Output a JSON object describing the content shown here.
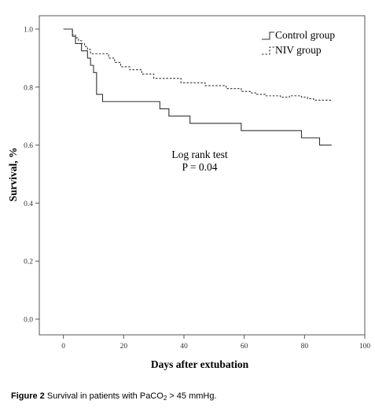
{
  "chart_data": {
    "type": "line",
    "step": true,
    "xlabel": "Days after extubation",
    "ylabel": "Survival, %",
    "xlim": [
      -8,
      100
    ],
    "ylim": [
      0,
      1
    ],
    "xticks": [
      0,
      20,
      40,
      60,
      80,
      100
    ],
    "yticks": [
      "0.0",
      "0.2",
      "0.4",
      "0.6",
      "0.8",
      "1.0"
    ],
    "grid": false,
    "legend_position": "top-right",
    "annotation": [
      "Log rank test",
      "P = 0.04"
    ],
    "series": [
      {
        "name": "Control group",
        "line_style": "solid",
        "color": "#333333",
        "x": [
          0,
          2,
          3,
          4,
          6,
          7,
          8,
          9,
          10,
          11,
          13,
          32,
          35,
          42,
          59,
          79,
          85,
          89
        ],
        "y": [
          1.0,
          1.0,
          0.975,
          0.95,
          0.925,
          0.925,
          0.9,
          0.875,
          0.85,
          0.775,
          0.75,
          0.725,
          0.7,
          0.675,
          0.65,
          0.625,
          0.6,
          0.6
        ]
      },
      {
        "name": "NIV group",
        "line_style": "dashed",
        "color": "#333333",
        "x": [
          0,
          2,
          3,
          4,
          5,
          6,
          7,
          8,
          9,
          15,
          17,
          19,
          22,
          26,
          30,
          39,
          47,
          54,
          59,
          62,
          64,
          67,
          72,
          75,
          79,
          81,
          83,
          89
        ],
        "y": [
          1.0,
          1.0,
          0.98,
          0.97,
          0.96,
          0.95,
          0.94,
          0.93,
          0.915,
          0.9,
          0.885,
          0.87,
          0.86,
          0.845,
          0.83,
          0.815,
          0.805,
          0.795,
          0.785,
          0.78,
          0.775,
          0.77,
          0.765,
          0.77,
          0.765,
          0.76,
          0.755,
          0.755
        ]
      }
    ]
  },
  "caption": {
    "label": "Figure 2",
    "text_before": "Survival in patients with PaCO",
    "subscript": "2",
    "text_after": " > 45 mmHg."
  }
}
